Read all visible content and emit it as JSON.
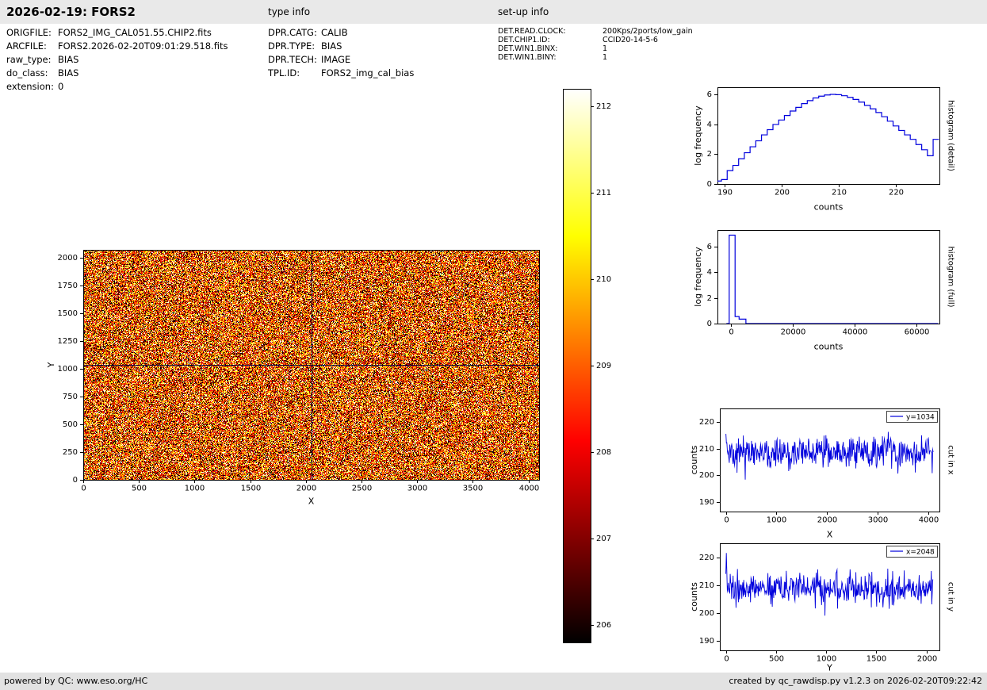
{
  "header": {
    "title": "2026-02-19: FORS2",
    "type_info_label": "type info",
    "setup_info_label": "set-up info"
  },
  "file_info": {
    "rows": [
      {
        "label": "ORIGFILE:",
        "value": "FORS2_IMG_CAL051.55.CHIP2.fits"
      },
      {
        "label": "ARCFILE:",
        "value": "FORS2.2026-02-20T09:01:29.518.fits"
      },
      {
        "label": "raw_type:",
        "value": "BIAS"
      },
      {
        "label": "do_class:",
        "value": "BIAS"
      },
      {
        "label": "extension:",
        "value": "0"
      }
    ]
  },
  "type_info": {
    "rows": [
      {
        "label": "DPR.CATG:",
        "value": "CALIB"
      },
      {
        "label": "DPR.TYPE:",
        "value": "BIAS"
      },
      {
        "label": "DPR.TECH:",
        "value": "IMAGE"
      },
      {
        "label": "TPL.ID:",
        "value": "FORS2_img_cal_bias"
      }
    ]
  },
  "setup_info": {
    "rows": [
      {
        "label": "DET.READ.CLOCK:",
        "value": "200Kps/2ports/low_gain"
      },
      {
        "label": "DET.CHIP1.ID:",
        "value": "CCID20-14-5-6"
      },
      {
        "label": "DET.WIN1.BINX:",
        "value": "1"
      },
      {
        "label": "DET.WIN1.BINY:",
        "value": "1"
      }
    ]
  },
  "footer": {
    "left": "powered by QC: www.eso.org/HC",
    "right": "created by qc_rawdisp.py v1.2.3 on 2026-02-20T09:22:42"
  },
  "colors": {
    "line": "#0000dd",
    "crosshair": "#000040",
    "axis": "#000000",
    "header_bg": "#e9e9e9",
    "footer_bg": "#e2e2e2"
  },
  "chart_data": [
    {
      "name": "raw-image",
      "type": "heatmap",
      "xlabel": "X",
      "ylabel": "Y",
      "xlim": [
        0,
        4096
      ],
      "ylim": [
        0,
        2068
      ],
      "xticks": [
        0,
        500,
        1000,
        1500,
        2000,
        2500,
        3000,
        3500,
        4000
      ],
      "yticks": [
        0,
        250,
        500,
        750,
        1000,
        1250,
        1500,
        1750,
        2000
      ],
      "colormap": "hot",
      "value_range": [
        205.8,
        212.2
      ],
      "noise": {
        "mean": 208.8,
        "std": 2.1,
        "seed": 20260219
      },
      "crosshair": {
        "x": 2048,
        "y": 1034
      }
    },
    {
      "name": "colorbar",
      "type": "colorbar",
      "colormap": "hot",
      "vmin": 205.8,
      "vmax": 212.2,
      "ticks": [
        206,
        207,
        208,
        209,
        210,
        211,
        212
      ]
    },
    {
      "name": "histogram-detail",
      "type": "histogram-steps",
      "xlabel": "counts",
      "ylabel": "log frequency",
      "right_label": "histogram (detail)",
      "xlim": [
        188.8,
        227.6
      ],
      "ylim": [
        0,
        6.5
      ],
      "xticks": [
        190,
        200,
        210,
        220
      ],
      "yticks": [
        0,
        2,
        4,
        6
      ],
      "bin_width": 1,
      "bins": [
        189,
        190,
        191,
        192,
        193,
        194,
        195,
        196,
        197,
        198,
        199,
        200,
        201,
        202,
        203,
        204,
        205,
        206,
        207,
        208,
        209,
        210,
        211,
        212,
        213,
        214,
        215,
        216,
        217,
        218,
        219,
        220,
        221,
        222,
        223,
        224,
        225,
        226,
        227
      ],
      "values": [
        0.2,
        0.3,
        0.9,
        1.25,
        1.7,
        2.1,
        2.5,
        2.9,
        3.3,
        3.65,
        4.0,
        4.3,
        4.6,
        4.9,
        5.15,
        5.4,
        5.6,
        5.78,
        5.9,
        5.98,
        6.02,
        6.0,
        5.93,
        5.82,
        5.68,
        5.5,
        5.28,
        5.05,
        4.8,
        4.52,
        4.22,
        3.9,
        3.6,
        3.3,
        3.0,
        2.65,
        2.3,
        1.9,
        3.0
      ]
    },
    {
      "name": "histogram-full",
      "type": "steps",
      "xlabel": "counts",
      "ylabel": "log frequency",
      "right_label": "histogram (full)",
      "xlim": [
        -4400,
        67400
      ],
      "ylim": [
        0,
        7.3
      ],
      "xticks": [
        0,
        20000,
        40000,
        60000
      ],
      "yticks": [
        0,
        2,
        4,
        6
      ],
      "steps": [
        [
          -1500,
          0
        ],
        [
          -600,
          0
        ],
        [
          -600,
          6.9
        ],
        [
          1300,
          6.9
        ],
        [
          1300,
          0.55
        ],
        [
          2600,
          0.55
        ],
        [
          2600,
          0.35
        ],
        [
          4800,
          0.35
        ],
        [
          4800,
          0
        ],
        [
          67000,
          0
        ]
      ]
    },
    {
      "name": "cut-in-x",
      "type": "line-noise",
      "legend": "y=1034",
      "xlabel": "X",
      "ylabel": "counts",
      "right_label": "cut in x",
      "xlim": [
        -120,
        4220
      ],
      "ylim": [
        186.5,
        225
      ],
      "xticks": [
        0,
        1000,
        2000,
        3000,
        4000
      ],
      "yticks": [
        190,
        200,
        210,
        220
      ],
      "noise": {
        "seed": 424242,
        "n": 430,
        "mean": 208.3,
        "std": 3.1,
        "x_range": [
          0,
          4096
        ]
      },
      "overrides": [
        [
          0,
          215.5
        ]
      ]
    },
    {
      "name": "cut-in-y",
      "type": "line-noise",
      "legend": "x=2048",
      "xlabel": "Y",
      "ylabel": "counts",
      "right_label": "cut in y",
      "xlim": [
        -60,
        2130
      ],
      "ylim": [
        186.5,
        225
      ],
      "xticks": [
        0,
        500,
        1000,
        1500,
        2000
      ],
      "yticks": [
        190,
        200,
        210,
        220
      ],
      "noise": {
        "seed": 777777,
        "n": 430,
        "mean": 208.6,
        "std": 3.0,
        "x_range": [
          0,
          2068
        ]
      },
      "overrides": [
        [
          1,
          221.5
        ],
        [
          2,
          215
        ]
      ]
    }
  ]
}
